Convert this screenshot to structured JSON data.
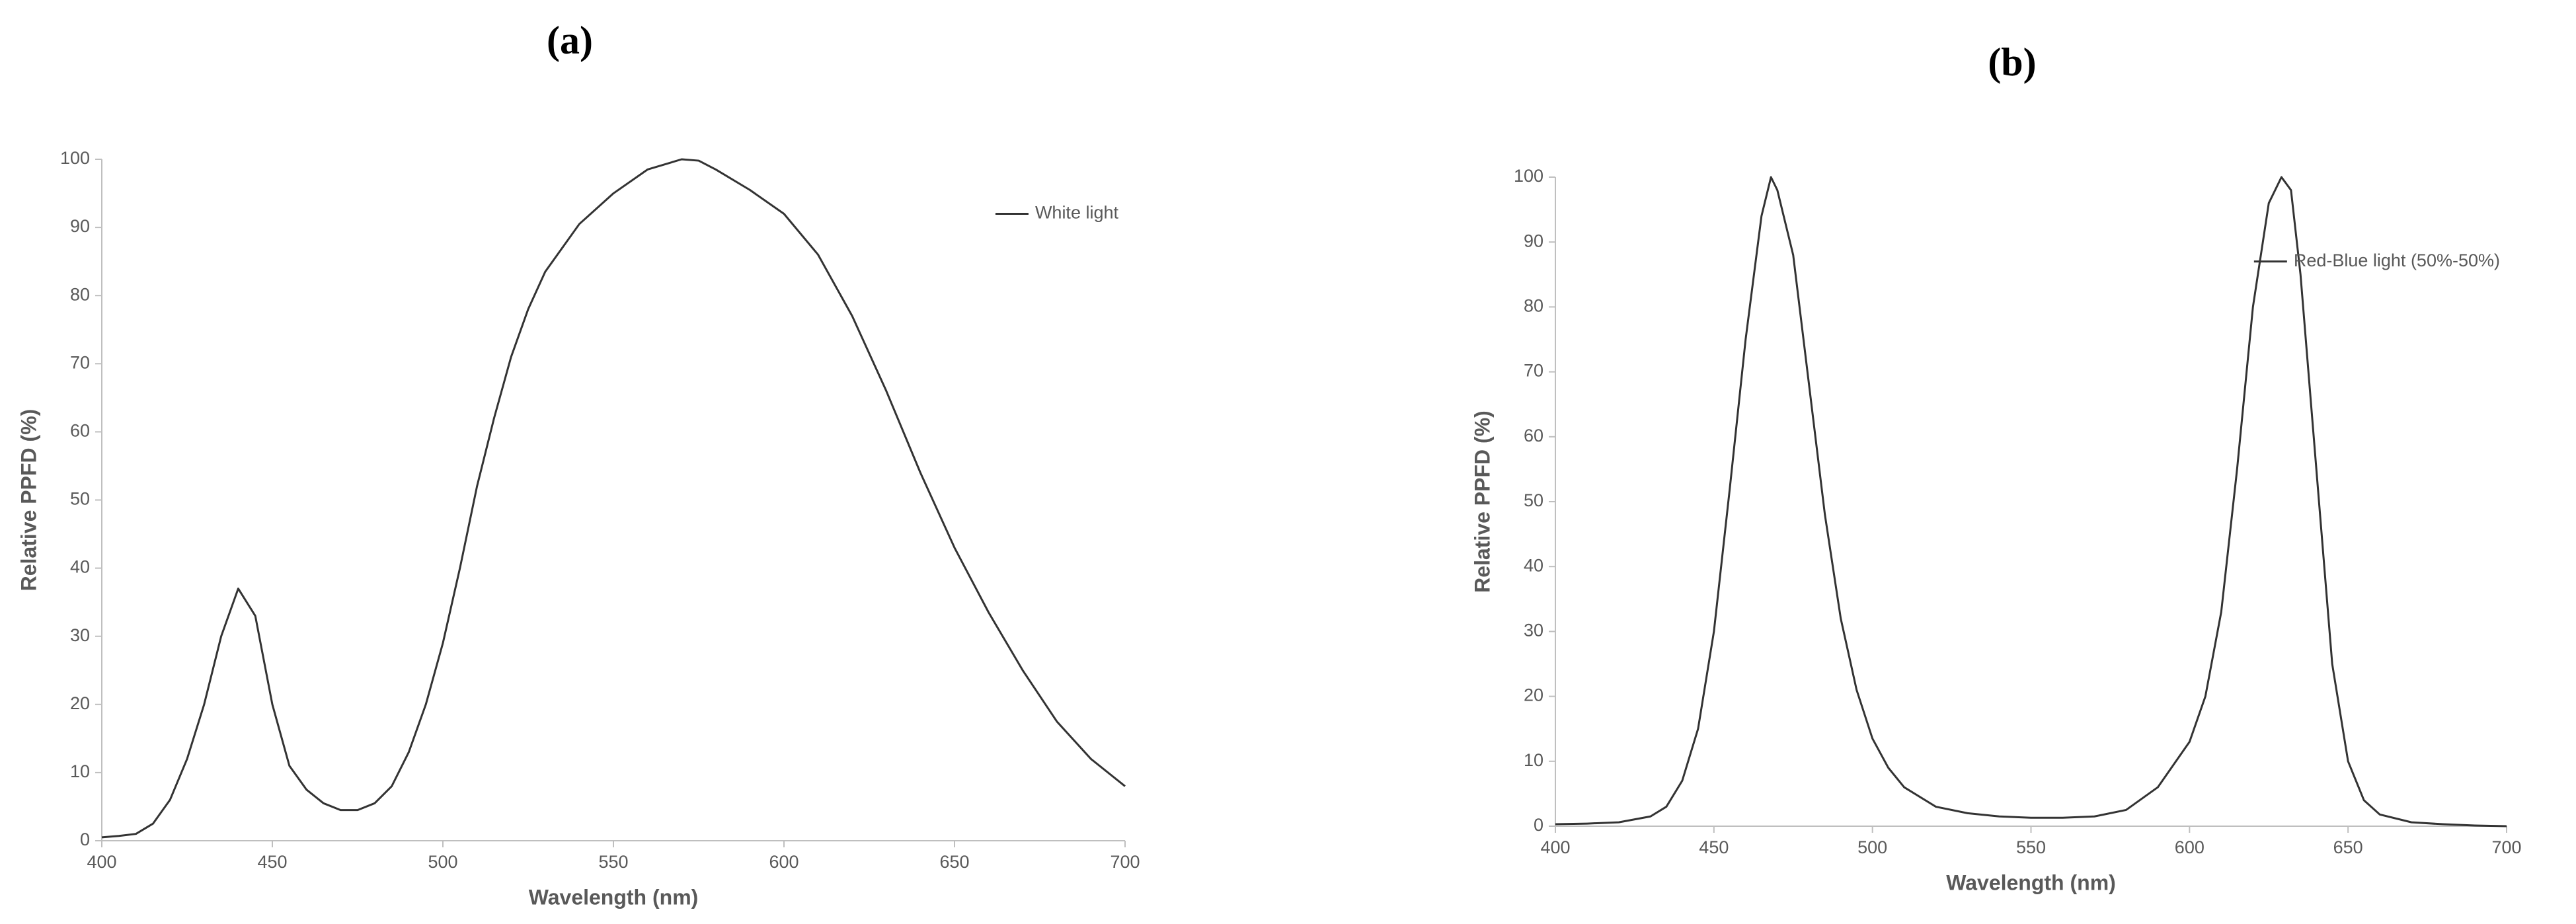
{
  "chart_data": [
    {
      "type": "line",
      "title": "(a)",
      "xlabel": "Wavelength (nm)",
      "ylabel": "Relative PPFD (%)",
      "xlim": [
        400,
        700
      ],
      "xticks": [
        400,
        450,
        500,
        550,
        600,
        650,
        700
      ],
      "ylim": [
        0,
        100
      ],
      "yticks": [
        0,
        10,
        20,
        30,
        40,
        50,
        60,
        70,
        80,
        90,
        100
      ],
      "legend": "upper right",
      "x": [
        400,
        405,
        410,
        415,
        420,
        425,
        430,
        435,
        440,
        445,
        450,
        455,
        460,
        465,
        470,
        475,
        480,
        485,
        490,
        495,
        500,
        505,
        510,
        515,
        520,
        525,
        530,
        540,
        550,
        560,
        570,
        575,
        580,
        590,
        600,
        610,
        620,
        630,
        640,
        650,
        660,
        670,
        680,
        690,
        700
      ],
      "series": [
        {
          "name": "White light",
          "color": "#333333",
          "values": [
            0.5,
            0.7,
            1,
            2.5,
            6,
            12,
            20,
            30,
            37,
            33,
            20,
            11,
            7.5,
            5.5,
            4.5,
            4.5,
            5.5,
            8,
            13,
            20,
            29,
            40,
            52,
            62,
            71,
            78,
            83.5,
            90.5,
            95,
            98.5,
            100,
            99.8,
            98.5,
            95.5,
            92,
            86,
            77,
            66,
            54,
            43,
            33.5,
            25,
            17.5,
            12,
            8
          ]
        }
      ]
    },
    {
      "type": "line",
      "title": "(b)",
      "xlabel": "Wavelength (nm)",
      "ylabel": "Relative PPFD (%)",
      "xlim": [
        400,
        700
      ],
      "xticks": [
        400,
        450,
        500,
        550,
        600,
        650,
        700
      ],
      "ylim": [
        0,
        100
      ],
      "yticks": [
        0,
        10,
        20,
        30,
        40,
        50,
        60,
        70,
        80,
        90,
        100
      ],
      "legend": "upper right",
      "x": [
        400,
        410,
        420,
        430,
        435,
        440,
        445,
        450,
        455,
        460,
        465,
        468,
        470,
        475,
        480,
        485,
        490,
        495,
        500,
        505,
        510,
        520,
        530,
        540,
        550,
        560,
        570,
        580,
        590,
        600,
        605,
        610,
        615,
        620,
        625,
        629,
        632,
        635,
        640,
        645,
        650,
        655,
        660,
        670,
        680,
        690,
        700
      ],
      "series": [
        {
          "name": "Red-Blue light (50%-50%)",
          "color": "#333333",
          "values": [
            0.3,
            0.4,
            0.6,
            1.5,
            3,
            7,
            15,
            30,
            52,
            75,
            94,
            100,
            98,
            88,
            68,
            48,
            32,
            21,
            13.5,
            9,
            6,
            3,
            2,
            1.5,
            1.3,
            1.3,
            1.5,
            2.5,
            6,
            13,
            20,
            33,
            55,
            80,
            96,
            100,
            98,
            85,
            55,
            25,
            10,
            4,
            1.8,
            0.6,
            0.3,
            0.1,
            0
          ]
        }
      ]
    }
  ]
}
